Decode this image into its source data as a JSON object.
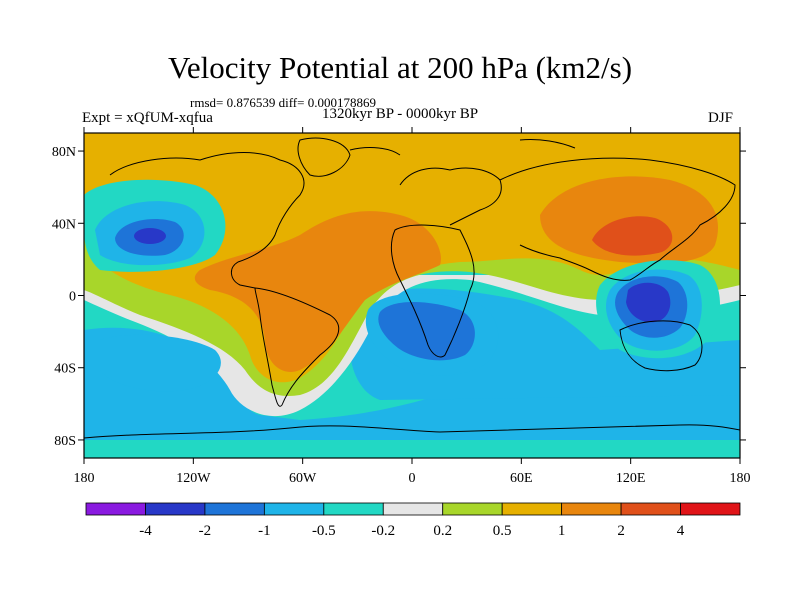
{
  "title": "Velocity Potential at 200 hPa (km2/s)",
  "stats": "rmsd= 0.876539 diff= 0.000178869",
  "experiment": "Expt = xQfUM-xqfua",
  "period": "1320kyr BP - 0000kyr BP",
  "season": "DJF",
  "lat_ticks": [
    {
      "label": "80N",
      "lat": 80
    },
    {
      "label": "40N",
      "lat": 40
    },
    {
      "label": "0",
      "lat": 0
    },
    {
      "label": "40S",
      "lat": -40
    },
    {
      "label": "80S",
      "lat": -80
    }
  ],
  "lon_ticks": [
    {
      "label": "180",
      "lon": -180
    },
    {
      "label": "120W",
      "lon": -120
    },
    {
      "label": "60W",
      "lon": -60
    },
    {
      "label": "0",
      "lon": 0
    },
    {
      "label": "60E",
      "lon": 60
    },
    {
      "label": "120E",
      "lon": 120
    },
    {
      "label": "180",
      "lon": 180
    }
  ],
  "colorbar": {
    "colors": [
      "#8a1ae0",
      "#2838c8",
      "#1e74d8",
      "#1fb4e8",
      "#22d8c4",
      "#e6e6e6",
      "#a8d62a",
      "#e6b000",
      "#e8860e",
      "#e0501a",
      "#e01418"
    ],
    "labels": [
      "-4",
      "-2",
      "-1",
      "-0.5",
      "-0.2",
      "0.2",
      "0.5",
      "1",
      "2",
      "4"
    ]
  }
}
